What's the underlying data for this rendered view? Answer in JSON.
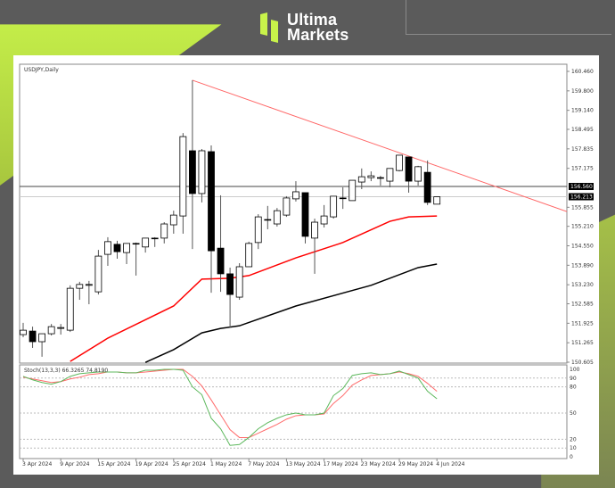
{
  "brand": {
    "line1": "Ultima",
    "line2": "Markets",
    "accent": "#c8f34a"
  },
  "chart_data": {
    "type": "candlestick",
    "title": "USDJPY,Daily",
    "ylim": [
      150.605,
      160.46
    ],
    "y_ticks": [
      "160.460",
      "159.800",
      "159.140",
      "158.495",
      "157.835",
      "157.175",
      "155.855",
      "155.210",
      "154.550",
      "153.890",
      "153.230",
      "152.585",
      "151.925",
      "151.265",
      "150.605"
    ],
    "price_labels": [
      {
        "value": "156.560",
        "price": 156.56,
        "color": "#000000"
      },
      {
        "value": "156.213",
        "price": 156.213,
        "color": "#999999"
      }
    ],
    "x_ticks": [
      "3 Apr 2024",
      "9 Apr 2024",
      "15 Apr 2024",
      "19 Apr 2024",
      "25 Apr 2024",
      "1 May 2024",
      "7 May 2024",
      "13 May 2024",
      "17 May 2024",
      "23 May 2024",
      "29 May 2024",
      "4 Jun 2024"
    ],
    "candles": [
      [
        151.54,
        151.94,
        151.45,
        151.69
      ],
      [
        151.66,
        151.81,
        151.09,
        151.3
      ],
      [
        151.3,
        151.57,
        150.79,
        151.57
      ],
      [
        151.57,
        151.9,
        151.51,
        151.81
      ],
      [
        151.75,
        151.9,
        151.54,
        151.78
      ],
      [
        151.69,
        153.21,
        151.63,
        153.11
      ],
      [
        153.11,
        153.33,
        152.72,
        153.24
      ],
      [
        153.21,
        153.36,
        152.57,
        153.24
      ],
      [
        152.99,
        154.41,
        152.9,
        154.2
      ],
      [
        154.26,
        154.84,
        153.87,
        154.69
      ],
      [
        154.6,
        154.72,
        154.11,
        154.35
      ],
      [
        154.32,
        154.63,
        153.93,
        154.63
      ],
      [
        154.63,
        154.66,
        153.54,
        154.63
      ],
      [
        154.51,
        154.81,
        154.32,
        154.81
      ],
      [
        154.81,
        154.84,
        154.51,
        154.81
      ],
      [
        154.81,
        155.35,
        154.63,
        155.29
      ],
      [
        155.26,
        155.74,
        154.96,
        155.59
      ],
      [
        155.56,
        158.37,
        154.96,
        158.25
      ],
      [
        157.77,
        160.16,
        154.44,
        156.32
      ],
      [
        156.32,
        157.83,
        156.02,
        157.77
      ],
      [
        157.74,
        157.95,
        152.96,
        154.38
      ],
      [
        154.47,
        156.26,
        152.99,
        153.6
      ],
      [
        153.6,
        153.81,
        151.78,
        152.9
      ],
      [
        152.81,
        153.96,
        152.72,
        153.84
      ],
      [
        153.84,
        154.69,
        153.84,
        154.63
      ],
      [
        154.66,
        155.62,
        154.44,
        155.53
      ],
      [
        155.44,
        155.9,
        155.11,
        155.44
      ],
      [
        155.29,
        155.83,
        155.2,
        155.74
      ],
      [
        155.59,
        156.23,
        155.53,
        156.17
      ],
      [
        156.14,
        156.74,
        156.05,
        156.38
      ],
      [
        156.35,
        156.35,
        154.63,
        154.87
      ],
      [
        154.81,
        155.47,
        153.6,
        155.35
      ],
      [
        155.29,
        155.93,
        155.17,
        155.56
      ],
      [
        155.53,
        156.23,
        155.47,
        156.23
      ],
      [
        156.17,
        156.53,
        155.8,
        156.17
      ],
      [
        156.08,
        156.77,
        156.08,
        156.77
      ],
      [
        156.71,
        157.17,
        156.47,
        156.89
      ],
      [
        156.86,
        157.07,
        156.74,
        156.92
      ],
      [
        156.86,
        156.92,
        156.59,
        156.86
      ],
      [
        156.74,
        157.17,
        156.53,
        157.17
      ],
      [
        157.1,
        157.62,
        157.07,
        157.62
      ],
      [
        157.56,
        157.56,
        156.35,
        156.74
      ],
      [
        156.74,
        157.26,
        156.59,
        157.23
      ],
      [
        157.04,
        157.44,
        155.93,
        156.02
      ],
      [
        155.96,
        156.21,
        155.96,
        156.21
      ]
    ],
    "ma_red": {
      "color": "#ff0000",
      "points": [
        [
          5,
          150.63
        ],
        [
          9,
          151.42
        ],
        [
          16,
          152.51
        ],
        [
          19,
          153.42
        ],
        [
          22,
          153.45
        ],
        [
          24,
          153.54
        ],
        [
          29,
          154.14
        ],
        [
          34,
          154.66
        ],
        [
          39,
          155.38
        ],
        [
          41,
          155.53
        ],
        [
          44,
          155.56
        ]
      ]
    },
    "ma_black": {
      "color": "#000000",
      "points": [
        [
          13,
          150.6
        ],
        [
          16,
          151.03
        ],
        [
          19,
          151.6
        ],
        [
          21,
          151.75
        ],
        [
          23,
          151.84
        ],
        [
          29,
          152.51
        ],
        [
          37,
          153.21
        ],
        [
          42,
          153.81
        ],
        [
          44,
          153.93
        ]
      ]
    },
    "trendline": {
      "color": "#ff6666",
      "start": [
        18,
        160.16
      ],
      "end_price_at_axis": 155.71
    },
    "stochastic": {
      "label": "Stoch(13,3,3) 66.3265 74.8190",
      "levels": [
        90,
        80,
        50,
        20,
        10
      ],
      "axis_ticks": [
        "100",
        "90",
        "80",
        "50",
        "20",
        "10",
        "0"
      ],
      "k_color": "#5cb85c",
      "d_color": "#ff6b6b",
      "k": [
        92,
        88,
        85,
        83,
        86,
        92,
        95,
        96,
        97,
        97,
        97,
        96,
        96,
        99,
        99,
        100,
        100,
        99,
        80,
        71,
        44,
        32,
        13,
        14,
        22,
        32,
        39,
        44,
        48,
        50,
        48,
        48,
        50,
        70,
        78,
        93,
        95,
        96,
        94,
        95,
        98,
        94,
        90,
        75,
        66.33
      ],
      "d": [
        91,
        89,
        87,
        85,
        86,
        89,
        91,
        94,
        95,
        97,
        97,
        96,
        96,
        97,
        98,
        99,
        100,
        100,
        92,
        81,
        65,
        48,
        31,
        22,
        22,
        27,
        32,
        37,
        43,
        47,
        48,
        48,
        49,
        61,
        70,
        82,
        88,
        93,
        94,
        95,
        97,
        95,
        92,
        84,
        74.82
      ]
    }
  }
}
